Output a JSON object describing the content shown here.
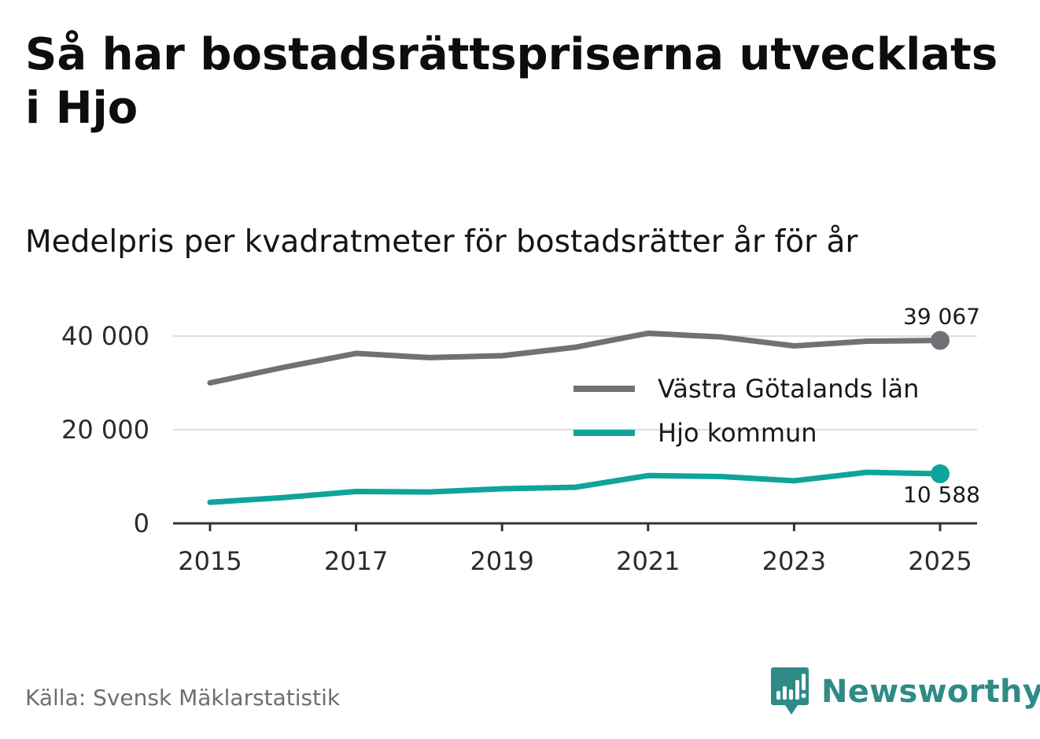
{
  "title": "Så har bostadsrättspriserna utvecklats i Hjo",
  "subtitle": "Medelpris per kvadratmeter för bostadsrätter år för år",
  "source": "Källa: Svensk Mäklarstatistik",
  "brand": "Newsworthy",
  "colors": {
    "grey_series": "#707075",
    "teal_series": "#0fa49a",
    "brand": "#2f8b86",
    "grid": "#dddddd",
    "axis": "#333333"
  },
  "chart_data": {
    "type": "line",
    "title": "Så har bostadsrättspriserna utvecklats i Hjo",
    "subtitle": "Medelpris per kvadratmeter för bostadsrätter år för år",
    "xlabel": "",
    "ylabel": "",
    "x": [
      2015,
      2016,
      2017,
      2018,
      2019,
      2020,
      2021,
      2022,
      2023,
      2024,
      2025
    ],
    "xticks": [
      2015,
      2017,
      2019,
      2021,
      2023,
      2025
    ],
    "xlim": [
      2015,
      2025
    ],
    "ylim": [
      0,
      40000
    ],
    "yticks": [
      0,
      20000,
      40000
    ],
    "ytick_labels": [
      "0",
      "20 000",
      "40 000"
    ],
    "grid": true,
    "legend_position": "middle-right",
    "series": [
      {
        "name": "Västra Götalands län",
        "color": "#707075",
        "values": [
          30000,
          33300,
          36300,
          35400,
          35800,
          37600,
          40600,
          39800,
          37900,
          38900,
          39067
        ],
        "end_label": "39 067",
        "end_label_position": "above"
      },
      {
        "name": "Hjo kommun",
        "color": "#0fa49a",
        "values": [
          4500,
          5500,
          6800,
          6700,
          7400,
          7700,
          10200,
          10000,
          9100,
          10900,
          10588
        ],
        "end_label": "10 588",
        "end_label_position": "below"
      }
    ]
  }
}
